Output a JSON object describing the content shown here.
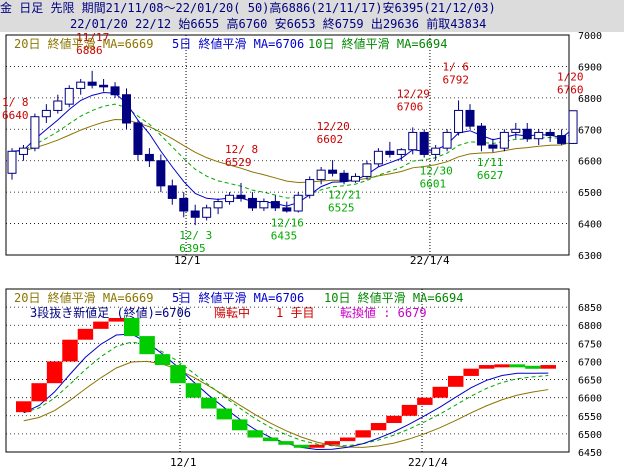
{
  "header": {
    "line1": "金 日足 先限 期間21/11/08～22/01/20( 50)高6886(21/11/17)安6395(21/12/03)",
    "line2": "22/01/20 22/12 始6655 高6760 安6653 終6759 出29636 前取43834"
  },
  "colors": {
    "up": "#ffffff",
    "down": "#000080",
    "ma5": "#0000cc",
    "ma10": "#00aa00",
    "ma20": "#8b7500",
    "brick_up": "#ff0000",
    "brick_down": "#00cc00",
    "annot_high": "#cc0000",
    "annot_low": "#00aa00"
  },
  "top_legend": {
    "ma20": "20日 終値平滑 MA=6669",
    "ma5": "5日 終値平滑 MA=6706",
    "ma10": "10日 終値平滑 MA=6694"
  },
  "bottom_legend": {
    "ma20": "20日 終値平滑 MA=6669",
    "ma5": "5日 終値平滑 MA=6706",
    "ma10": "10日 終値平滑 MA=6694",
    "title": "3段抜き新値足 (終値)=6706",
    "state": "陽転中",
    "step": "1 手目",
    "reversal": "転換値 : 6679"
  },
  "chart_data": [
    {
      "type": "candlestick",
      "ylim": [
        6300,
        7000
      ],
      "yticks": [
        "7000",
        "6900",
        "6800",
        "6700",
        "6600",
        "6500",
        "6400",
        "6300"
      ],
      "xticks": [
        "12/1",
        "22/1/4"
      ],
      "ohlc": [
        [
          6560,
          6640,
          6540,
          6630
        ],
        [
          6620,
          6650,
          6600,
          6640
        ],
        [
          6640,
          6750,
          6630,
          6740
        ],
        [
          6740,
          6780,
          6720,
          6760
        ],
        [
          6760,
          6810,
          6750,
          6790
        ],
        [
          6780,
          6840,
          6770,
          6830
        ],
        [
          6830,
          6860,
          6810,
          6850
        ],
        [
          6850,
          6886,
          6830,
          6840
        ],
        [
          6840,
          6860,
          6820,
          6835
        ],
        [
          6835,
          6850,
          6800,
          6810
        ],
        [
          6810,
          6830,
          6700,
          6720
        ],
        [
          6720,
          6730,
          6600,
          6620
        ],
        [
          6620,
          6640,
          6580,
          6600
        ],
        [
          6600,
          6620,
          6500,
          6520
        ],
        [
          6520,
          6540,
          6460,
          6480
        ],
        [
          6480,
          6500,
          6420,
          6440
        ],
        [
          6440,
          6460,
          6395,
          6420
        ],
        [
          6420,
          6460,
          6410,
          6450
        ],
        [
          6450,
          6480,
          6430,
          6470
        ],
        [
          6470,
          6500,
          6460,
          6490
        ],
        [
          6490,
          6529,
          6470,
          6480
        ],
        [
          6480,
          6500,
          6440,
          6450
        ],
        [
          6450,
          6480,
          6440,
          6470
        ],
        [
          6470,
          6490,
          6440,
          6450
        ],
        [
          6450,
          6470,
          6435,
          6440
        ],
        [
          6440,
          6500,
          6435,
          6490
        ],
        [
          6490,
          6550,
          6480,
          6540
        ],
        [
          6540,
          6580,
          6525,
          6570
        ],
        [
          6570,
          6602,
          6550,
          6560
        ],
        [
          6560,
          6570,
          6525,
          6535
        ],
        [
          6535,
          6560,
          6530,
          6550
        ],
        [
          6550,
          6600,
          6540,
          6590
        ],
        [
          6590,
          6640,
          6580,
          6630
        ],
        [
          6630,
          6660,
          6610,
          6620
        ],
        [
          6620,
          6640,
          6600,
          6635
        ],
        [
          6635,
          6706,
          6620,
          6690
        ],
        [
          6690,
          6700,
          6610,
          6620
        ],
        [
          6620,
          6650,
          6601,
          6640
        ],
        [
          6640,
          6700,
          6630,
          6690
        ],
        [
          6690,
          6792,
          6680,
          6760
        ],
        [
          6760,
          6780,
          6700,
          6710
        ],
        [
          6710,
          6720,
          6630,
          6650
        ],
        [
          6650,
          6670,
          6627,
          6640
        ],
        [
          6640,
          6700,
          6630,
          6690
        ],
        [
          6690,
          6720,
          6670,
          6700
        ],
        [
          6700,
          6720,
          6660,
          6670
        ],
        [
          6670,
          6700,
          6650,
          6690
        ],
        [
          6690,
          6700,
          6660,
          6680
        ],
        [
          6680,
          6700,
          6650,
          6655
        ],
        [
          6655,
          6760,
          6653,
          6759
        ]
      ],
      "annotations": [
        {
          "label": "1/ 8\n6640",
          "kind": "high",
          "index": 0
        },
        {
          "label": "11/17\n6886",
          "kind": "high",
          "index": 7
        },
        {
          "label": "12/ 3\n6395",
          "kind": "low",
          "index": 16
        },
        {
          "label": "12/ 8\n6529",
          "kind": "high",
          "index": 20
        },
        {
          "label": "12/16\n6435",
          "kind": "low",
          "index": 24
        },
        {
          "label": "12/20\n6602",
          "kind": "high",
          "index": 28
        },
        {
          "label": "12/21\n6525",
          "kind": "low",
          "index": 29
        },
        {
          "label": "12/29\n6706",
          "kind": "high",
          "index": 35
        },
        {
          "label": "12/30\n6601",
          "kind": "low",
          "index": 37
        },
        {
          "label": "1/ 6\n6792",
          "kind": "high",
          "index": 39
        },
        {
          "label": "1/11\n6627",
          "kind": "low",
          "index": 42
        },
        {
          "label": "1/20\n6760",
          "kind": "high",
          "index": 49
        }
      ]
    },
    {
      "type": "bar",
      "subtype": "new-price-bricks",
      "ylim": [
        6450,
        6900
      ],
      "yticks": [
        "6850",
        "6800",
        "6750",
        "6700",
        "6650",
        "6600",
        "6550",
        "6500",
        "6450"
      ],
      "xticks": [
        "12/1",
        "22/1/4"
      ],
      "bricks": [
        [
          "up",
          6560,
          6590
        ],
        [
          "up",
          6590,
          6640
        ],
        [
          "up",
          6640,
          6700
        ],
        [
          "up",
          6700,
          6760
        ],
        [
          "up",
          6760,
          6790
        ],
        [
          "up",
          6790,
          6810
        ],
        [
          "up",
          6810,
          6820
        ],
        [
          "down",
          6820,
          6770
        ],
        [
          "down",
          6770,
          6720
        ],
        [
          "down",
          6720,
          6690
        ],
        [
          "down",
          6690,
          6640
        ],
        [
          "down",
          6640,
          6600
        ],
        [
          "down",
          6600,
          6570
        ],
        [
          "down",
          6570,
          6540
        ],
        [
          "down",
          6540,
          6510
        ],
        [
          "down",
          6510,
          6490
        ],
        [
          "down",
          6490,
          6480
        ],
        [
          "down",
          6480,
          6470
        ],
        [
          "down",
          6470,
          6465
        ],
        [
          "up",
          6465,
          6470
        ],
        [
          "up",
          6470,
          6480
        ],
        [
          "up",
          6480,
          6490
        ],
        [
          "up",
          6490,
          6510
        ],
        [
          "up",
          6510,
          6530
        ],
        [
          "up",
          6530,
          6550
        ],
        [
          "up",
          6550,
          6580
        ],
        [
          "up",
          6580,
          6600
        ],
        [
          "up",
          6600,
          6630
        ],
        [
          "up",
          6630,
          6660
        ],
        [
          "up",
          6660,
          6680
        ],
        [
          "up",
          6680,
          6690
        ],
        [
          "up",
          6690,
          6692
        ],
        [
          "down",
          6692,
          6688
        ],
        [
          "down",
          6688,
          6680
        ],
        [
          "up",
          6680,
          6690
        ]
      ]
    }
  ]
}
